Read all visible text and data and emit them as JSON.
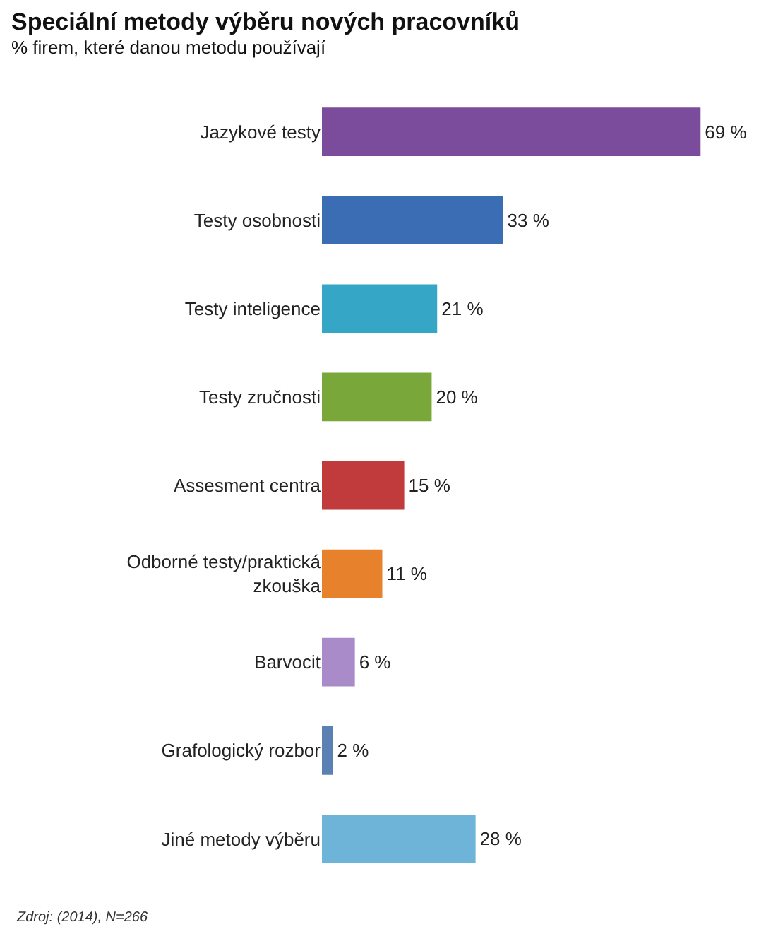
{
  "chart_data": {
    "type": "bar",
    "orientation": "horizontal",
    "title": "Speciální metody výběru nových pracovníků",
    "subtitle": "% firem, které danou metodu používají",
    "categories": [
      "Jazykové testy",
      "Testy osobnosti",
      "Testy inteligence",
      "Testy zručnosti",
      "Assesment centra",
      "Odborné testy/praktická zkouška",
      "Barvocit",
      "Grafologický rozbor",
      "Jiné metody výběru"
    ],
    "values": [
      69,
      33,
      21,
      20,
      15,
      11,
      6,
      2,
      28
    ],
    "colors": [
      "#7b4c9c",
      "#3b6db5",
      "#35a6c6",
      "#79a73a",
      "#c13a3c",
      "#e8812b",
      "#a88bc8",
      "#5a80b4",
      "#6db4d8"
    ],
    "value_labels": [
      "69 %",
      "33 %",
      "21 %",
      "20 %",
      "15 %",
      "11 %",
      "6 %",
      "2 %",
      "28 %"
    ],
    "grid": false,
    "annotations": [
      "Zdroj: (2014), N=266"
    ]
  }
}
